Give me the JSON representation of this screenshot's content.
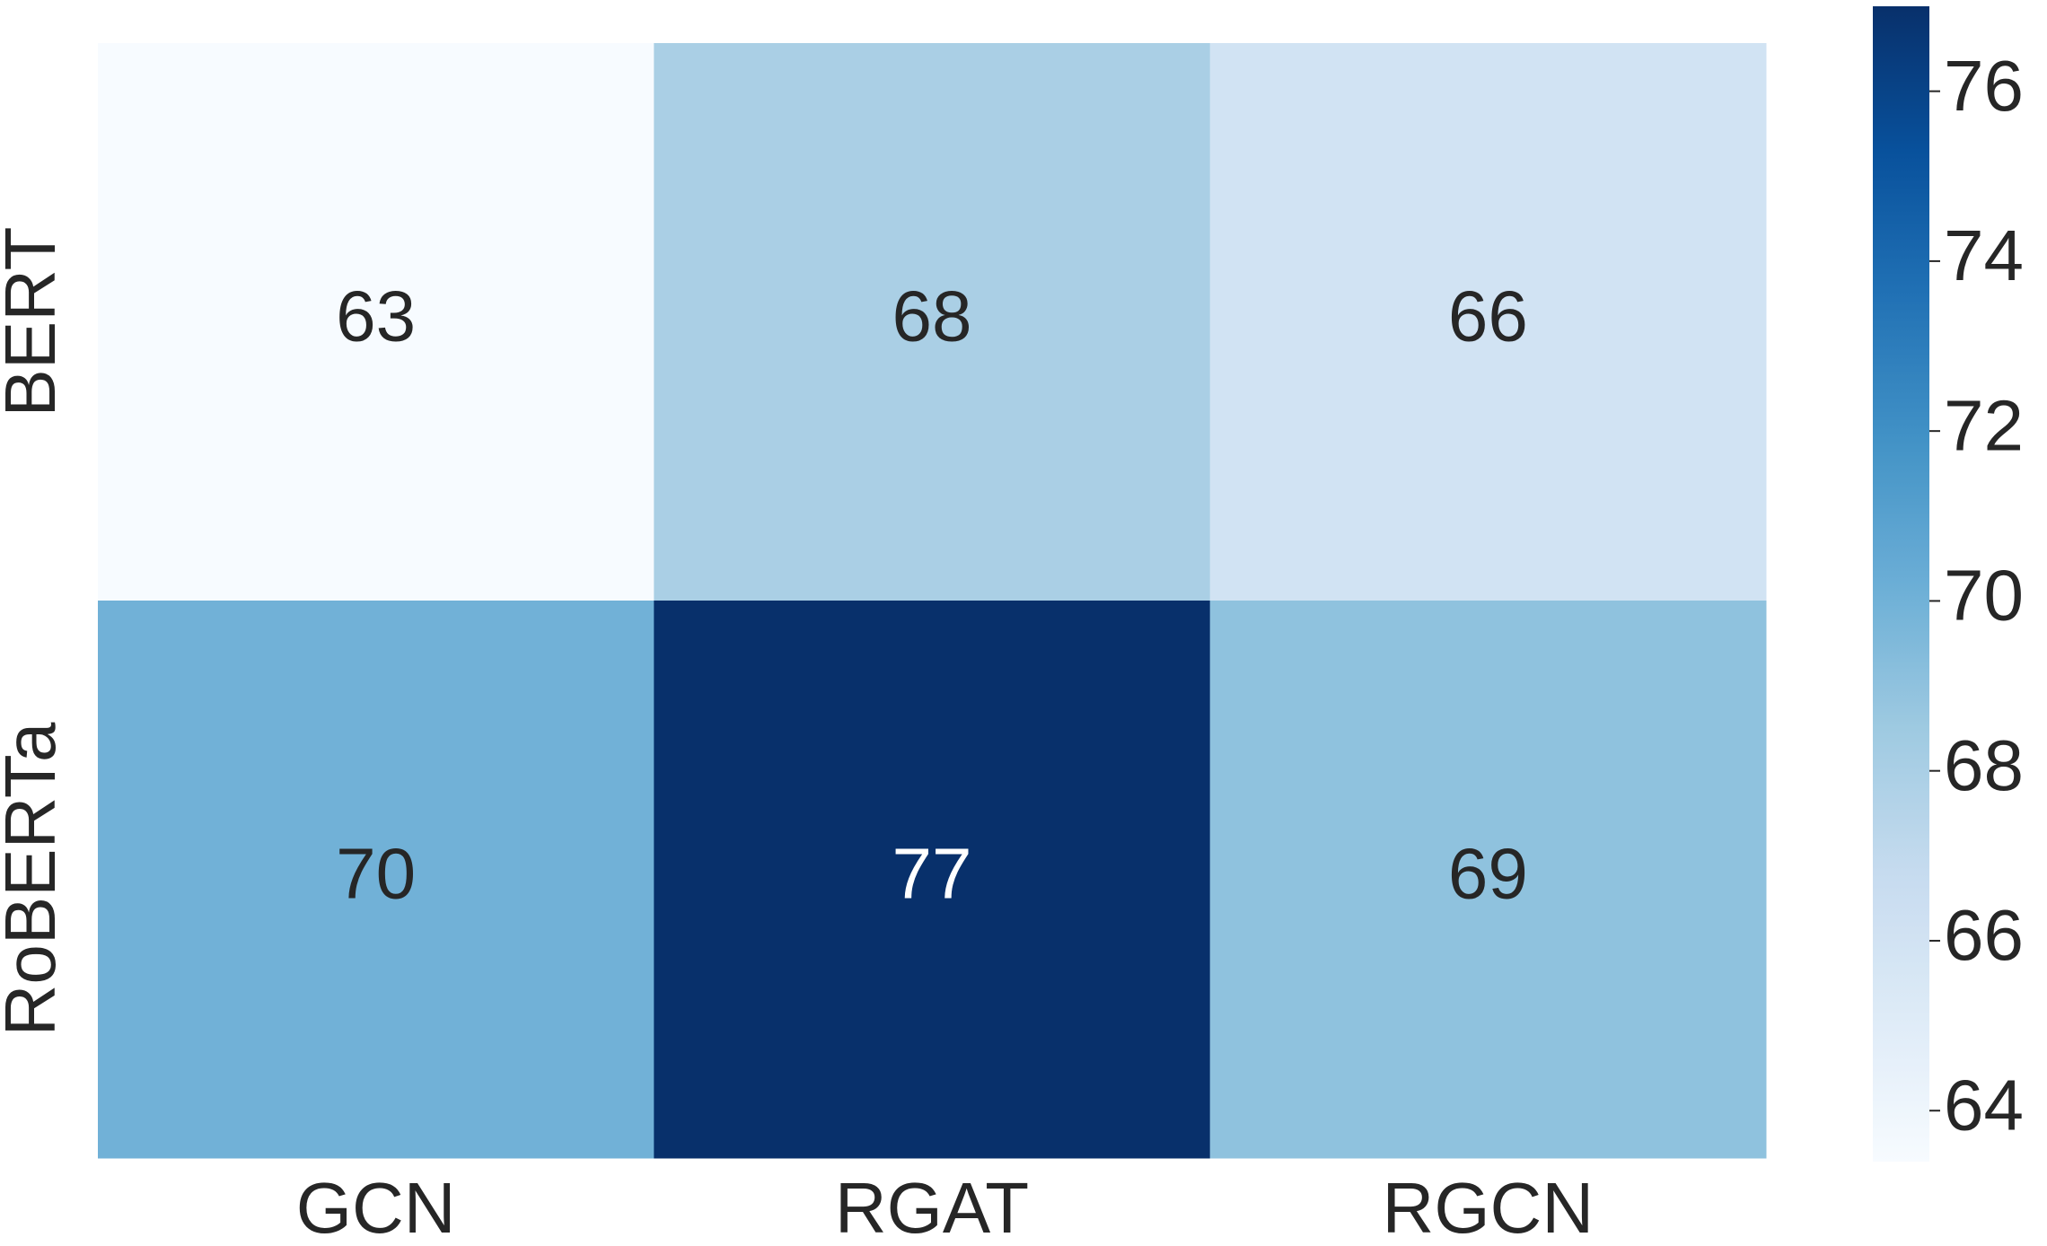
{
  "chart_data": {
    "type": "heatmap",
    "rows": [
      "BERT",
      "RoBERTa"
    ],
    "columns": [
      "GCN",
      "RGAT",
      "RGCN"
    ],
    "values": [
      [
        63,
        68,
        66
      ],
      [
        70,
        77,
        69
      ]
    ],
    "clim": [
      63.4,
      77
    ],
    "cticks": [
      64,
      66,
      68,
      70,
      72,
      74,
      76
    ],
    "colormap": [
      "#f7fbff",
      "#deebf7",
      "#c6dbef",
      "#9ecae1",
      "#6baed6",
      "#4292c6",
      "#2171b5",
      "#08519c",
      "#08306b"
    ]
  }
}
